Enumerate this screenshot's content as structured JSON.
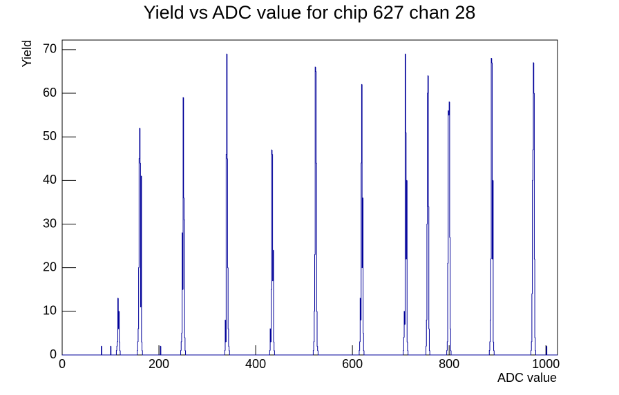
{
  "chart_data": {
    "type": "histogram",
    "title": "Yield vs ADC value for chip 627 chan 28",
    "xlabel": "ADC value",
    "ylabel": "Yield",
    "color": "#000099",
    "bins": [
      0,
      81,
      82,
      100,
      101,
      112,
      113,
      114,
      115,
      116,
      117,
      118,
      119,
      120,
      155,
      156,
      157,
      158,
      159,
      160,
      161,
      162,
      163,
      164,
      165,
      166,
      203,
      204,
      245,
      246,
      247,
      248,
      249,
      250,
      251,
      252,
      253,
      254,
      255,
      336,
      337,
      338,
      339,
      340,
      341,
      342,
      343,
      344,
      345,
      346,
      429,
      430,
      431,
      432,
      433,
      434,
      435,
      436,
      437,
      438,
      439,
      519,
      520,
      521,
      522,
      523,
      524,
      525,
      526,
      527,
      528,
      529,
      614,
      615,
      616,
      617,
      618,
      619,
      620,
      621,
      622,
      623,
      624,
      705,
      706,
      707,
      708,
      709,
      710,
      711,
      712,
      713,
      714,
      715,
      752,
      753,
      754,
      755,
      756,
      757,
      758,
      759,
      760,
      795,
      796,
      797,
      798,
      799,
      800,
      801,
      802,
      803,
      804,
      883,
      884,
      885,
      886,
      887,
      888,
      889,
      890,
      891,
      892,
      893,
      969,
      970,
      971,
      972,
      973,
      974,
      975,
      976,
      977,
      978,
      979,
      1001,
      1002,
      1024
    ],
    "values": [
      0,
      2,
      0,
      2,
      0,
      1,
      2,
      3,
      13,
      6,
      10,
      3,
      1,
      0,
      1,
      3,
      6,
      20,
      45,
      52,
      44,
      11,
      41,
      3,
      1,
      0,
      2,
      0,
      1,
      3,
      5,
      28,
      15,
      59,
      36,
      31,
      4,
      1,
      0,
      1,
      8,
      3,
      46,
      69,
      45,
      20,
      6,
      2,
      1,
      0,
      1,
      6,
      3,
      15,
      47,
      46,
      17,
      24,
      3,
      1,
      0,
      1,
      3,
      10,
      23,
      66,
      65,
      44,
      10,
      2,
      1,
      0,
      1,
      3,
      13,
      8,
      44,
      62,
      20,
      36,
      5,
      1,
      0,
      1,
      4,
      10,
      7,
      69,
      51,
      22,
      40,
      3,
      1,
      0,
      2,
      8,
      30,
      60,
      64,
      34,
      6,
      1,
      0,
      1,
      3,
      21,
      56,
      55,
      58,
      27,
      6,
      1,
      0,
      1,
      3,
      8,
      22,
      68,
      67,
      22,
      40,
      3,
      1,
      0,
      1,
      3,
      14,
      40,
      47,
      67,
      60,
      22,
      4,
      1,
      0,
      2,
      0
    ],
    "xlim": [
      0,
      1024
    ],
    "ylim": [
      0,
      72.2
    ],
    "xticks": [
      0,
      200,
      400,
      600,
      800,
      1000
    ],
    "yticks": [
      0,
      10,
      20,
      30,
      40,
      50,
      60,
      70
    ]
  }
}
